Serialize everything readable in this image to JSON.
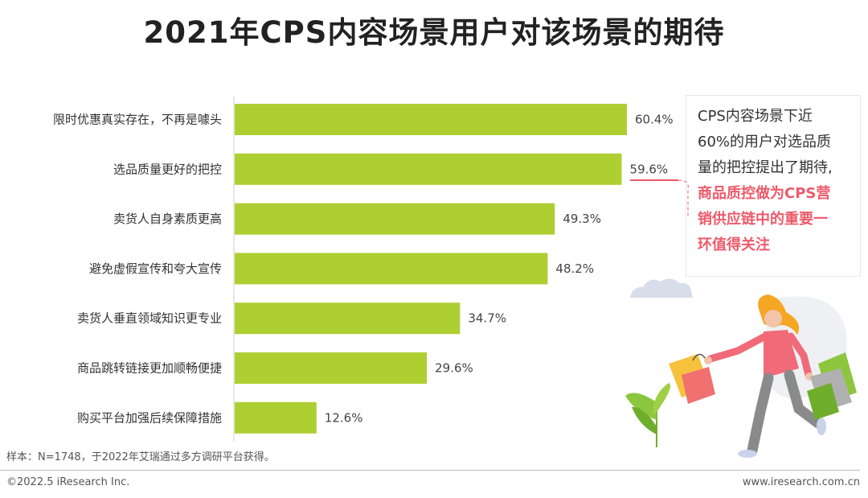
{
  "page": {
    "title": "2021年CPS内容场景用户对该场景的期待",
    "source_note": "样本：N=1748，于2022年艾瑞通过多方调研平台获得。",
    "copyright": "©2022.5 iResearch Inc.",
    "website": "www.iresearch.com.cn"
  },
  "callout": {
    "line1": "CPS内容场景下近",
    "line2": "60%的用户对选品质",
    "line3": "量的把控提出了期待,",
    "highlight1": "商品质控做为CPS营",
    "highlight2": "销供应链中的重要一",
    "highlight3": "环值得关注"
  },
  "colors": {
    "bar": "#aecf32",
    "highlight": "#ee5a6a"
  },
  "chart_data": {
    "type": "bar",
    "orientation": "horizontal",
    "title": "2021年CPS内容场景用户对该场景的期待",
    "categories": [
      "限时优惠真实存在，不再是噱头",
      "选品质量更好的把控",
      "卖货人自身素质更高",
      "避免虚假宣传和夸大宣传",
      "卖货人垂直领域知识更专业",
      "商品跳转链接更加顺畅便捷",
      "购买平台加强后续保障措施"
    ],
    "values": [
      60.4,
      59.6,
      49.3,
      48.2,
      34.7,
      29.6,
      12.6
    ],
    "value_labels": [
      "60.4%",
      "59.6%",
      "49.3%",
      "48.2%",
      "34.7%",
      "29.6%",
      "12.6%"
    ],
    "unit": "%",
    "xlim": [
      0,
      70
    ],
    "grid": false,
    "legend": "none"
  }
}
